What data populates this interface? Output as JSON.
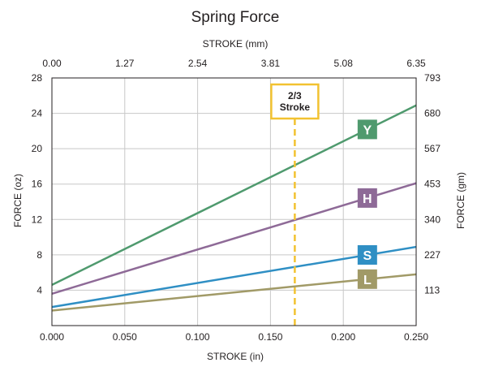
{
  "chart_data": {
    "type": "line",
    "title": "Spring Force",
    "xlabel": "STROKE (in)",
    "ylabel": "FORCE (oz)",
    "x2label": "STROKE (mm)",
    "y2label": "FORCE (gm)",
    "xlim": [
      0.0,
      0.25
    ],
    "ylim": [
      0,
      28
    ],
    "grid": true,
    "x_ticks": [
      0.0,
      0.05,
      0.1,
      0.15,
      0.2,
      0.25
    ],
    "x_tick_labels": [
      "0.000",
      "0.050",
      "0.100",
      "0.150",
      "0.200",
      "0.250"
    ],
    "y_ticks": [
      4,
      8,
      12,
      16,
      20,
      24,
      28
    ],
    "y_tick_labels": [
      "4",
      "8",
      "12",
      "16",
      "20",
      "24",
      "28"
    ],
    "x2_ticks": [
      0.0,
      0.05,
      0.1,
      0.15,
      0.2,
      0.25
    ],
    "x2_tick_labels": [
      "0.00",
      "1.27",
      "2.54",
      "3.81",
      "5.08",
      "6.35"
    ],
    "y2_ticks": [
      4,
      8,
      12,
      16,
      20,
      24,
      28
    ],
    "y2_tick_labels": [
      "113",
      "227",
      "340",
      "453",
      "567",
      "680",
      "793"
    ],
    "series": [
      {
        "name": "Y",
        "x": [
          0.0,
          0.25
        ],
        "values": [
          4.6,
          24.9
        ],
        "color": "#4f9a6e"
      },
      {
        "name": "H",
        "x": [
          0.0,
          0.25
        ],
        "values": [
          3.6,
          16.1
        ],
        "color": "#8e6a97"
      },
      {
        "name": "S",
        "x": [
          0.0,
          0.25
        ],
        "values": [
          2.1,
          8.9
        ],
        "color": "#2f8fc4"
      },
      {
        "name": "L",
        "x": [
          0.0,
          0.25
        ],
        "values": [
          1.7,
          5.8
        ],
        "color": "#a19a67"
      }
    ],
    "annotations": [
      {
        "type": "vline",
        "x": 0.1667,
        "label_line1": "2/3",
        "label_line2": "Stroke",
        "color": "#f2c230"
      }
    ]
  }
}
